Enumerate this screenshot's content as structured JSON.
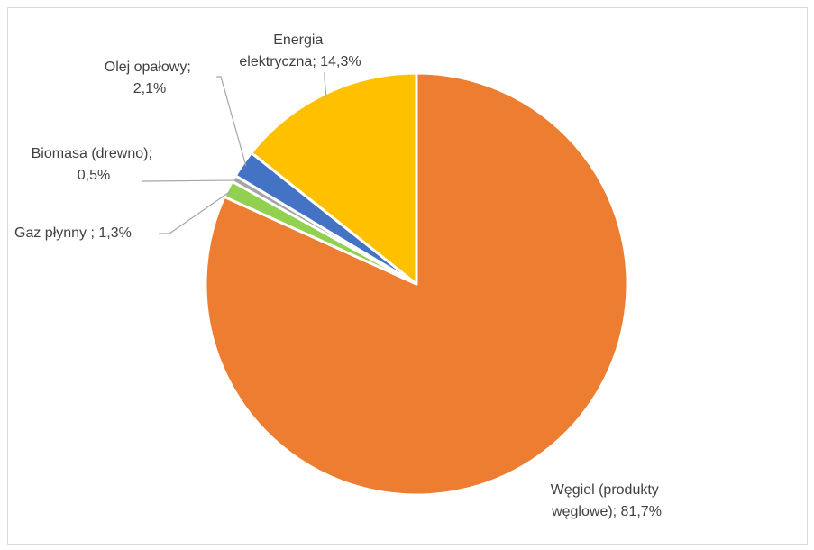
{
  "chart_data": {
    "type": "pie",
    "series": [
      {
        "name": "",
        "slices": [
          {
            "label": "Węgiel (produkty węglowe)",
            "value": 81.7,
            "color": "#ED7D31",
            "label_lines": [
              "Węgiel (produkty",
              "węglowe); 81,7%"
            ]
          },
          {
            "label": "Gaz płynny ",
            "value": 1.3,
            "color": "#92D050",
            "label_lines": [
              "Gaz płynny ; 1,3%"
            ]
          },
          {
            "label": "Biomasa (drewno)",
            "value": 0.5,
            "color": "#A5A5A5",
            "label_lines": [
              "Biomasa (drewno);",
              "0,5%"
            ]
          },
          {
            "label": "Olej opałowy",
            "value": 2.1,
            "color": "#4472C4",
            "label_lines": [
              "Olej opałowy;",
              "2,1%"
            ]
          },
          {
            "label": "Energia elektryczna",
            "value": 14.3,
            "color": "#FFC000",
            "label_lines": [
              "Energia",
              "elektryczna; 14,3%"
            ]
          }
        ]
      }
    ],
    "start_angle": "12 o'clock",
    "direction": "clockwise",
    "legend": "none",
    "data_labels": "category; percentage"
  }
}
